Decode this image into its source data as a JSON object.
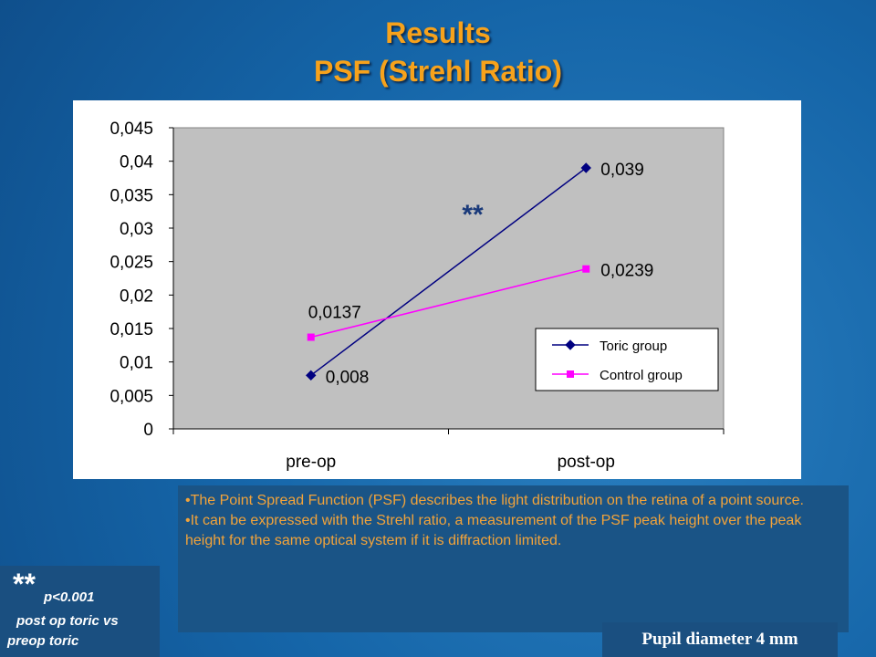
{
  "slide": {
    "title": [
      "Results",
      "PSF (Strehl Ratio)"
    ],
    "bullets": [
      "The Point Spread Function (PSF) describes  the light distribution on the retina of a point source.",
      "It can be expressed with the Strehl ratio, a measurement of the PSF peak height over the peak height for the same optical system if it is diffraction limited."
    ],
    "footnote": {
      "mark": "**",
      "lines": [
        "p<0.001",
        "post op toric vs",
        "preop  toric"
      ]
    },
    "pupil_note": "Pupil diameter 4 mm"
  },
  "chart_data": {
    "type": "line",
    "categories": [
      "pre-op",
      "post-op"
    ],
    "series": [
      {
        "name": "Toric group",
        "color": "#000080",
        "marker": "diamond",
        "values": [
          0.008,
          0.039
        ],
        "value_labels": [
          "0,008",
          "0,039"
        ]
      },
      {
        "name": "Control group",
        "color": "#ff00ff",
        "marker": "square",
        "values": [
          0.0137,
          0.0239
        ],
        "value_labels": [
          "0,0137",
          "0,0239"
        ]
      }
    ],
    "annotation": "**",
    "ylim": [
      0,
      0.045
    ],
    "yticks": [
      0,
      {
        "value": 0.005,
        "label": "0,005"
      },
      {
        "value": 0.01,
        "label": "0,01"
      },
      {
        "value": 0.015,
        "label": "0,015"
      },
      {
        "value": 0.02,
        "label": "0,02"
      },
      {
        "value": 0.025,
        "label": "0,025"
      },
      {
        "value": 0.03,
        "label": "0,03"
      },
      {
        "value": 0.035,
        "label": "0,035"
      },
      {
        "value": 0.04,
        "label": "0,04"
      },
      {
        "value": 0.045,
        "label": "0,045"
      }
    ],
    "grid": false,
    "legend": "right"
  }
}
